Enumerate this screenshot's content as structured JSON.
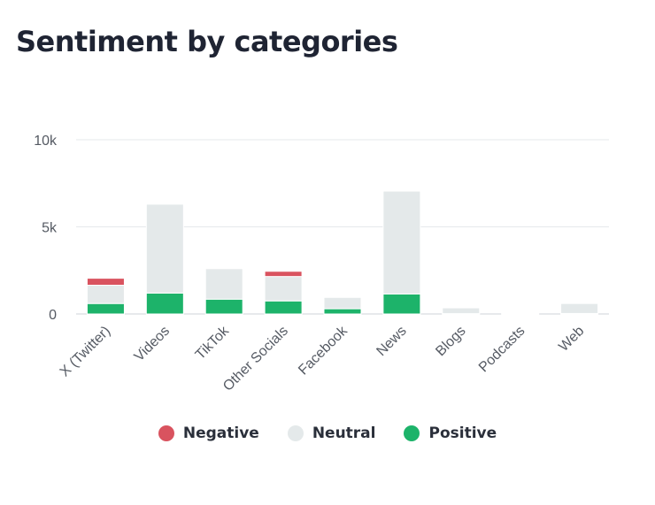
{
  "chart_data": {
    "type": "bar",
    "stacked": true,
    "title": "Sentiment by categories",
    "categories": [
      "X (Twitter)",
      "Videos",
      "TikTok",
      "Other Socials",
      "Facebook",
      "News",
      "Blogs",
      "Podcasts",
      "Web"
    ],
    "series": [
      {
        "name": "Positive",
        "color": "#1db36a",
        "values": [
          600,
          1200,
          850,
          750,
          300,
          1150,
          20,
          0,
          30
        ]
      },
      {
        "name": "Neutral",
        "color": "#e4e9ea",
        "values": [
          1050,
          5100,
          1750,
          1400,
          650,
          5900,
          330,
          20,
          570
        ]
      },
      {
        "name": "Negative",
        "color": "#d9535f",
        "values": [
          400,
          0,
          0,
          300,
          0,
          0,
          0,
          0,
          0
        ]
      }
    ],
    "ylim": [
      0,
      10000
    ],
    "yticks": [
      "0",
      "5k",
      "10k"
    ],
    "xlabel": "",
    "ylabel": "",
    "grid": true,
    "legend": "bottom-center"
  }
}
